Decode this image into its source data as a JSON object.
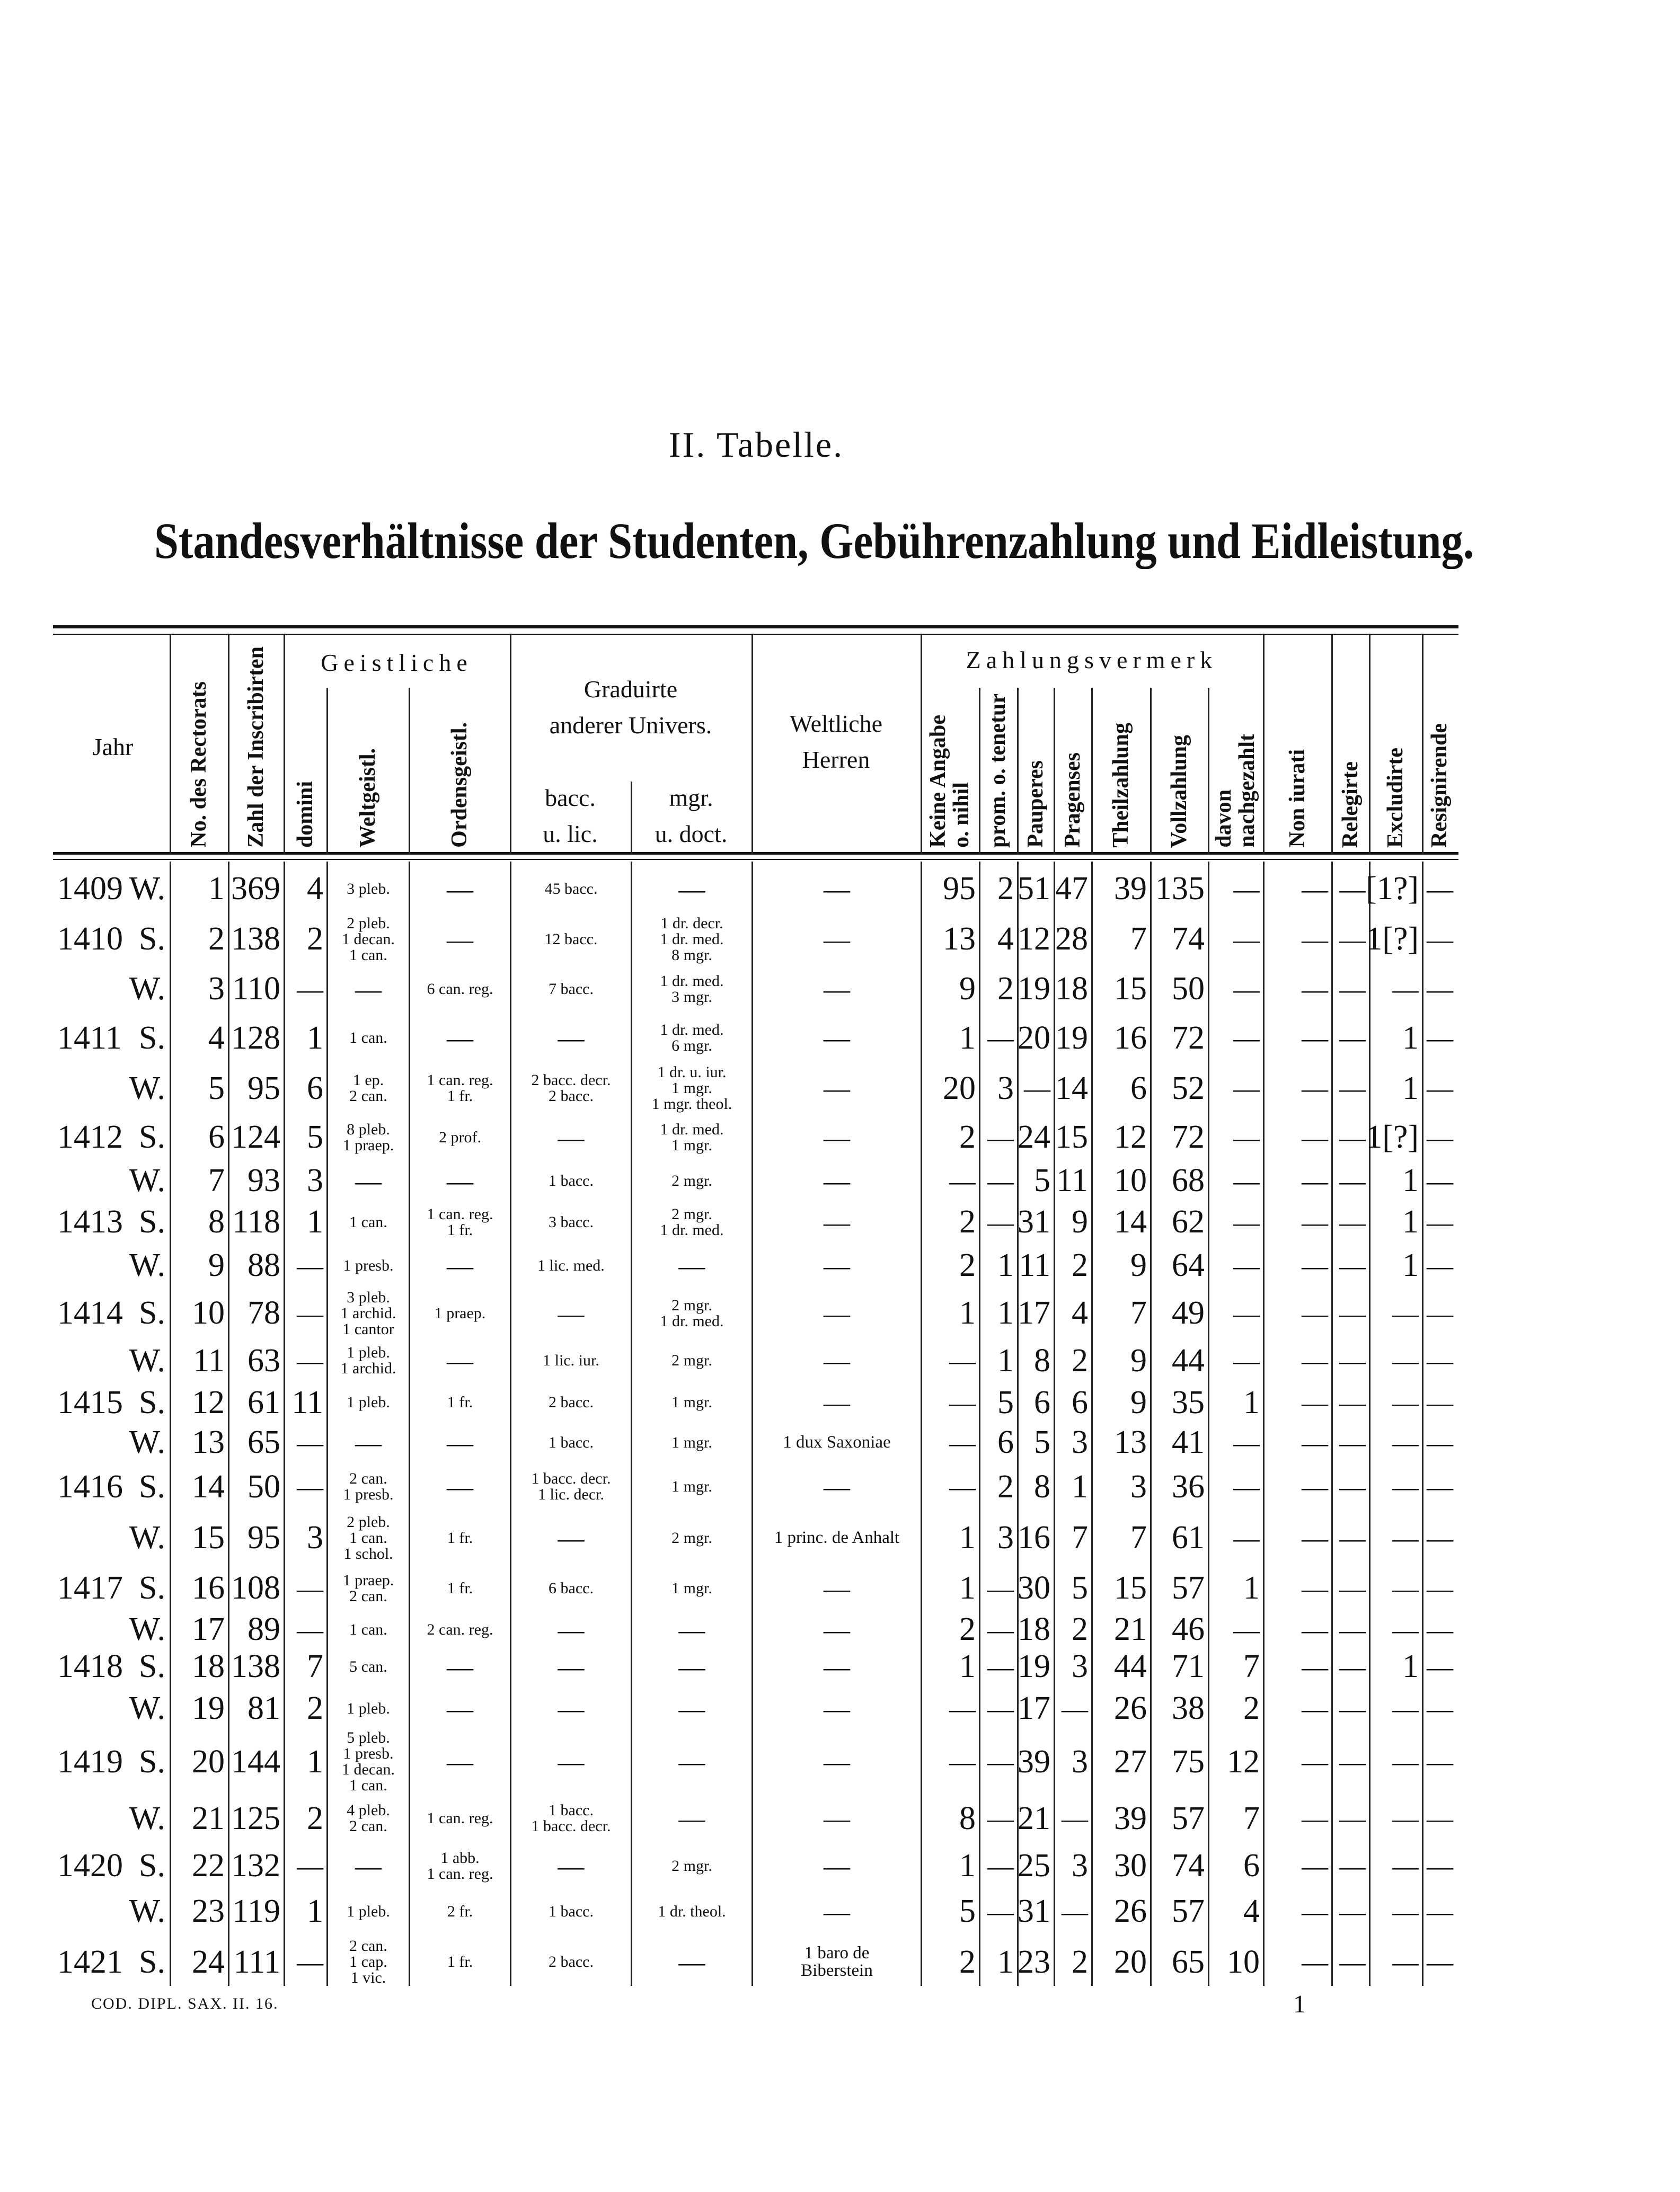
{
  "page": {
    "title": "II. Tabelle.",
    "subtitle": "Standesverhältnisse der Studenten, Gebührenzahlung und Eidleistung.",
    "footer_code": "COD. DIPL. SAX. II. 16.",
    "page_number": "1"
  },
  "header": {
    "jahr": "Jahr",
    "no_rectorats": "No. des Rectorats",
    "zahl_inscribirten": "Zahl der Inscribirten",
    "geistliche": "Geistliche",
    "domini": "domini",
    "weltgeistl": "Weltgeistl.",
    "ordensgeistl": "Ordensgeistl.",
    "graduirte": "Graduirte\nanderer Univers.",
    "bacc": "bacc.\nu. lic.",
    "mgr": "mgr.\nu. doct.",
    "weltliche": "Weltliche\nHerren",
    "zahlungsvermerk": "Zahlungsvermerk",
    "keine_angabe": "Keine Angabe\no. nihil",
    "prom_tenetur": "prom. o. tenetur",
    "pauperes": "Pauperes",
    "pragenses": "Pragenses",
    "theilzahlung": "Theilzahlung",
    "vollzahlung": "Vollzahlung",
    "davon": "davon\nnachgezahlt",
    "non_iurati": "Non iurati",
    "relegirte": "Relegirte",
    "excludirte": "Excludirte",
    "resignirende": "Resignirende"
  },
  "rows": [
    {
      "year": "1409",
      "sem": "W.",
      "no": "1",
      "zahl": "369",
      "domini": "4",
      "weltgeistl": "3 pleb.",
      "ordens": "—",
      "bacc": "45 bacc.",
      "mgr": "—",
      "weltliche": "—",
      "keine": "95",
      "prom": "2",
      "pauperes": "51",
      "pragenses": "47",
      "theil": "39",
      "voll": "135",
      "davon": "—",
      "non_iurati": "—",
      "relegirte": "—",
      "excludirte": "[1?]",
      "resignirende": "—"
    },
    {
      "year": "1410",
      "sem": "S.",
      "no": "2",
      "zahl": "138",
      "domini": "2",
      "weltgeistl": "2 pleb.\n1 decan.\n1 can.",
      "ordens": "—",
      "bacc": "12 bacc.",
      "mgr": "1 dr. decr.\n1 dr. med.\n8 mgr.",
      "weltliche": "—",
      "keine": "13",
      "prom": "4",
      "pauperes": "12",
      "pragenses": "28",
      "theil": "7",
      "voll": "74",
      "davon": "—",
      "non_iurati": "—",
      "relegirte": "—",
      "excludirte": "1[?]",
      "resignirende": "—"
    },
    {
      "year": "",
      "sem": "W.",
      "no": "3",
      "zahl": "110",
      "domini": "—",
      "weltgeistl": "—",
      "ordens": "6 can. reg.",
      "bacc": "7 bacc.",
      "mgr": "1 dr. med.\n3 mgr.",
      "weltliche": "—",
      "keine": "9",
      "prom": "2",
      "pauperes": "19",
      "pragenses": "18",
      "theil": "15",
      "voll": "50",
      "davon": "—",
      "non_iurati": "—",
      "relegirte": "—",
      "excludirte": "—",
      "resignirende": "—"
    },
    {
      "year": "1411",
      "sem": "S.",
      "no": "4",
      "zahl": "128",
      "domini": "1",
      "weltgeistl": "1 can.",
      "ordens": "—",
      "bacc": "—",
      "mgr": "1 dr. med.\n6 mgr.",
      "weltliche": "—",
      "keine": "1",
      "prom": "—",
      "pauperes": "20",
      "pragenses": "19",
      "theil": "16",
      "voll": "72",
      "davon": "—",
      "non_iurati": "—",
      "relegirte": "—",
      "excludirte": "1",
      "resignirende": "—"
    },
    {
      "year": "",
      "sem": "W.",
      "no": "5",
      "zahl": "95",
      "domini": "6",
      "weltgeistl": "1 ep.\n2 can.",
      "ordens": "1 can. reg.\n1 fr.",
      "bacc": "2 bacc. decr.\n2 bacc.",
      "mgr": "1 dr. u. iur.\n1 mgr.\n1 mgr. theol.",
      "weltliche": "—",
      "keine": "20",
      "prom": "3",
      "pauperes": "—",
      "pragenses": "14",
      "theil": "6",
      "voll": "52",
      "davon": "—",
      "non_iurati": "—",
      "relegirte": "—",
      "excludirte": "1",
      "resignirende": "—"
    },
    {
      "year": "1412",
      "sem": "S.",
      "no": "6",
      "zahl": "124",
      "domini": "5",
      "weltgeistl": "8 pleb.\n1 praep.",
      "ordens": "2 prof.",
      "bacc": "—",
      "mgr": "1 dr. med.\n1 mgr.",
      "weltliche": "—",
      "keine": "2",
      "prom": "—",
      "pauperes": "24",
      "pragenses": "15",
      "theil": "12",
      "voll": "72",
      "davon": "—",
      "non_iurati": "—",
      "relegirte": "—",
      "excludirte": "1[?]",
      "resignirende": "—"
    },
    {
      "year": "",
      "sem": "W.",
      "no": "7",
      "zahl": "93",
      "domini": "3",
      "weltgeistl": "—",
      "ordens": "—",
      "bacc": "1 bacc.",
      "mgr": "2 mgr.",
      "weltliche": "—",
      "keine": "—",
      "prom": "—",
      "pauperes": "5",
      "pragenses": "11",
      "theil": "10",
      "voll": "68",
      "davon": "—",
      "non_iurati": "—",
      "relegirte": "—",
      "excludirte": "1",
      "resignirende": "—"
    },
    {
      "year": "1413",
      "sem": "S.",
      "no": "8",
      "zahl": "118",
      "domini": "1",
      "weltgeistl": "1 can.",
      "ordens": "1 can. reg.\n1 fr.",
      "bacc": "3 bacc.",
      "mgr": "2 mgr.\n1 dr. med.",
      "weltliche": "—",
      "keine": "2",
      "prom": "—",
      "pauperes": "31",
      "pragenses": "9",
      "theil": "14",
      "voll": "62",
      "davon": "—",
      "non_iurati": "—",
      "relegirte": "—",
      "excludirte": "1",
      "resignirende": "—"
    },
    {
      "year": "",
      "sem": "W.",
      "no": "9",
      "zahl": "88",
      "domini": "—",
      "weltgeistl": "1 presb.",
      "ordens": "—",
      "bacc": "1 lic. med.",
      "mgr": "—",
      "weltliche": "—",
      "keine": "2",
      "prom": "1",
      "pauperes": "11",
      "pragenses": "2",
      "theil": "9",
      "voll": "64",
      "davon": "—",
      "non_iurati": "—",
      "relegirte": "—",
      "excludirte": "1",
      "resignirende": "—"
    },
    {
      "year": "1414",
      "sem": "S.",
      "no": "10",
      "zahl": "78",
      "domini": "—",
      "weltgeistl": "3 pleb.\n1 archid.\n1 cantor",
      "ordens": "1 praep.",
      "bacc": "—",
      "mgr": "2 mgr.\n1 dr. med.",
      "weltliche": "—",
      "keine": "1",
      "prom": "1",
      "pauperes": "17",
      "pragenses": "4",
      "theil": "7",
      "voll": "49",
      "davon": "—",
      "non_iurati": "—",
      "relegirte": "—",
      "excludirte": "—",
      "resignirende": "—"
    },
    {
      "year": "",
      "sem": "W.",
      "no": "11",
      "zahl": "63",
      "domini": "—",
      "weltgeistl": "1 pleb.\n1 archid.",
      "ordens": "—",
      "bacc": "1 lic. iur.",
      "mgr": "2 mgr.",
      "weltliche": "—",
      "keine": "—",
      "prom": "1",
      "pauperes": "8",
      "pragenses": "2",
      "theil": "9",
      "voll": "44",
      "davon": "—",
      "non_iurati": "—",
      "relegirte": "—",
      "excludirte": "—",
      "resignirende": "—"
    },
    {
      "year": "1415",
      "sem": "S.",
      "no": "12",
      "zahl": "61",
      "domini": "11",
      "weltgeistl": "1 pleb.",
      "ordens": "1 fr.",
      "bacc": "2 bacc.",
      "mgr": "1 mgr.",
      "weltliche": "—",
      "keine": "—",
      "prom": "5",
      "pauperes": "6",
      "pragenses": "6",
      "theil": "9",
      "voll": "35",
      "davon": "1",
      "non_iurati": "—",
      "relegirte": "—",
      "excludirte": "—",
      "resignirende": "—"
    },
    {
      "year": "",
      "sem": "W.",
      "no": "13",
      "zahl": "65",
      "domini": "—",
      "weltgeistl": "—",
      "ordens": "—",
      "bacc": "1 bacc.",
      "mgr": "1 mgr.",
      "weltliche": "1 dux Saxoniae",
      "keine": "—",
      "prom": "6",
      "pauperes": "5",
      "pragenses": "3",
      "theil": "13",
      "voll": "41",
      "davon": "—",
      "non_iurati": "—",
      "relegirte": "—",
      "excludirte": "—",
      "resignirende": "—"
    },
    {
      "year": "1416",
      "sem": "S.",
      "no": "14",
      "zahl": "50",
      "domini": "—",
      "weltgeistl": "2 can.\n1 presb.",
      "ordens": "—",
      "bacc": "1 bacc. decr.\n1 lic. decr.",
      "mgr": "1 mgr.",
      "weltliche": "—",
      "keine": "—",
      "prom": "2",
      "pauperes": "8",
      "pragenses": "1",
      "theil": "3",
      "voll": "36",
      "davon": "—",
      "non_iurati": "—",
      "relegirte": "—",
      "excludirte": "—",
      "resignirende": "—"
    },
    {
      "year": "",
      "sem": "W.",
      "no": "15",
      "zahl": "95",
      "domini": "3",
      "weltgeistl": "2 pleb.\n1 can.\n1 schol.",
      "ordens": "1 fr.",
      "bacc": "—",
      "mgr": "2 mgr.",
      "weltliche": "1 princ. de Anhalt",
      "keine": "1",
      "prom": "3",
      "pauperes": "16",
      "pragenses": "7",
      "theil": "7",
      "voll": "61",
      "davon": "—",
      "non_iurati": "—",
      "relegirte": "—",
      "excludirte": "—",
      "resignirende": "—"
    },
    {
      "year": "1417",
      "sem": "S.",
      "no": "16",
      "zahl": "108",
      "domini": "—",
      "weltgeistl": "1 praep.\n2 can.",
      "ordens": "1 fr.",
      "bacc": "6 bacc.",
      "mgr": "1 mgr.",
      "weltliche": "—",
      "keine": "1",
      "prom": "—",
      "pauperes": "30",
      "pragenses": "5",
      "theil": "15",
      "voll": "57",
      "davon": "1",
      "non_iurati": "—",
      "relegirte": "—",
      "excludirte": "—",
      "resignirende": "—"
    },
    {
      "year": "",
      "sem": "W.",
      "no": "17",
      "zahl": "89",
      "domini": "—",
      "weltgeistl": "1 can.",
      "ordens": "2 can. reg.",
      "bacc": "—",
      "mgr": "—",
      "weltliche": "—",
      "keine": "2",
      "prom": "—",
      "pauperes": "18",
      "pragenses": "2",
      "theil": "21",
      "voll": "46",
      "davon": "—",
      "non_iurati": "—",
      "relegirte": "—",
      "excludirte": "—",
      "resignirende": "—"
    },
    {
      "year": "1418",
      "sem": "S.",
      "no": "18",
      "zahl": "138",
      "domini": "7",
      "weltgeistl": "5 can.",
      "ordens": "—",
      "bacc": "—",
      "mgr": "—",
      "weltliche": "—",
      "keine": "1",
      "prom": "—",
      "pauperes": "19",
      "pragenses": "3",
      "theil": "44",
      "voll": "71",
      "davon": "7",
      "non_iurati": "—",
      "relegirte": "—",
      "excludirte": "1",
      "resignirende": "—"
    },
    {
      "year": "",
      "sem": "W.",
      "no": "19",
      "zahl": "81",
      "domini": "2",
      "weltgeistl": "1 pleb.",
      "ordens": "—",
      "bacc": "—",
      "mgr": "—",
      "weltliche": "—",
      "keine": "—",
      "prom": "—",
      "pauperes": "17",
      "pragenses": "—",
      "theil": "26",
      "voll": "38",
      "davon": "2",
      "non_iurati": "—",
      "relegirte": "—",
      "excludirte": "—",
      "resignirende": "—"
    },
    {
      "year": "1419",
      "sem": "S.",
      "no": "20",
      "zahl": "144",
      "domini": "1",
      "weltgeistl": "5 pleb.\n1 presb.\n1 decan.\n1 can.",
      "ordens": "—",
      "bacc": "—",
      "mgr": "—",
      "weltliche": "—",
      "keine": "—",
      "prom": "—",
      "pauperes": "39",
      "pragenses": "3",
      "theil": "27",
      "voll": "75",
      "davon": "12",
      "non_iurati": "—",
      "relegirte": "—",
      "excludirte": "—",
      "resignirende": "—"
    },
    {
      "year": "",
      "sem": "W.",
      "no": "21",
      "zahl": "125",
      "domini": "2",
      "weltgeistl": "4 pleb.\n2 can.",
      "ordens": "1 can. reg.",
      "bacc": "1 bacc.\n1 bacc. decr.",
      "mgr": "—",
      "weltliche": "—",
      "keine": "8",
      "prom": "—",
      "pauperes": "21",
      "pragenses": "—",
      "theil": "39",
      "voll": "57",
      "davon": "7",
      "non_iurati": "—",
      "relegirte": "—",
      "excludirte": "—",
      "resignirende": "—"
    },
    {
      "year": "1420",
      "sem": "S.",
      "no": "22",
      "zahl": "132",
      "domini": "—",
      "weltgeistl": "—",
      "ordens": "1 abb.\n1 can. reg.",
      "bacc": "—",
      "mgr": "2 mgr.",
      "weltliche": "—",
      "keine": "1",
      "prom": "—",
      "pauperes": "25",
      "pragenses": "3",
      "theil": "30",
      "voll": "74",
      "davon": "6",
      "non_iurati": "—",
      "relegirte": "—",
      "excludirte": "—",
      "resignirende": "—"
    },
    {
      "year": "",
      "sem": "W.",
      "no": "23",
      "zahl": "119",
      "domini": "1",
      "weltgeistl": "1 pleb.",
      "ordens": "2 fr.",
      "bacc": "1 bacc.",
      "mgr": "1 dr. theol.",
      "weltliche": "—",
      "keine": "5",
      "prom": "—",
      "pauperes": "31",
      "pragenses": "—",
      "theil": "26",
      "voll": "57",
      "davon": "4",
      "non_iurati": "—",
      "relegirte": "—",
      "excludirte": "—",
      "resignirende": "—"
    },
    {
      "year": "1421",
      "sem": "S.",
      "no": "24",
      "zahl": "111",
      "domini": "—",
      "weltgeistl": "2 can.\n1 cap.\n1 vic.",
      "ordens": "1 fr.",
      "bacc": "2 bacc.",
      "mgr": "—",
      "weltliche": "1 baro de\nBiberstein",
      "keine": "2",
      "prom": "1",
      "pauperes": "23",
      "pragenses": "2",
      "theil": "20",
      "voll": "65",
      "davon": "10",
      "non_iurati": "—",
      "relegirte": "—",
      "excludirte": "—",
      "resignirende": "—"
    }
  ]
}
